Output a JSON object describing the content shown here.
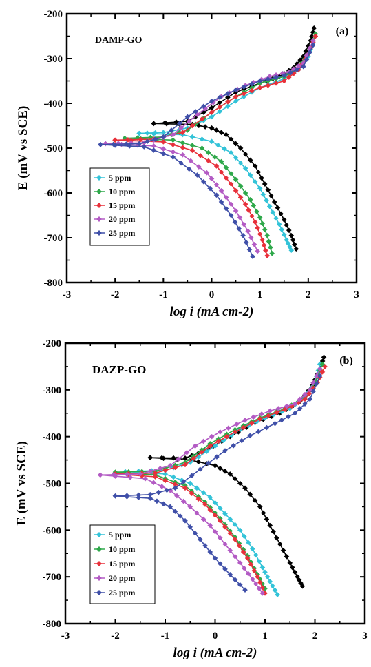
{
  "chart_data": [
    {
      "type": "line",
      "panel_tag": "(a)",
      "title": "DAMP-GO",
      "xlabel": "log i (mA cm-2)",
      "ylabel": "E (mV vs SCE)",
      "xlim": [
        -3,
        3
      ],
      "ylim": [
        -800,
        -200
      ],
      "x_ticks": [
        "-3",
        "-2",
        "-1",
        "0",
        "1",
        "2",
        "3"
      ],
      "y_ticks": [
        "-200",
        "-300",
        "-400",
        "-500",
        "-600",
        "-700",
        "-800"
      ],
      "legend_position": "lower-left",
      "series": [
        {
          "name": "",
          "color": "#000000",
          "anodic": [
            [
              -1.2,
              -445
            ],
            [
              -0.5,
              -440
            ],
            [
              0.0,
              -410
            ],
            [
              0.5,
              -375
            ],
            [
              1.0,
              -355
            ],
            [
              1.4,
              -340
            ],
            [
              1.7,
              -320
            ],
            [
              1.9,
              -295
            ],
            [
              2.05,
              -260
            ],
            [
              2.12,
              -232
            ]
          ],
          "cathodic": [
            [
              -1.2,
              -445
            ],
            [
              -0.4,
              -447
            ],
            [
              0.0,
              -455
            ],
            [
              0.3,
              -470
            ],
            [
              0.6,
              -500
            ],
            [
              0.9,
              -540
            ],
            [
              1.1,
              -580
            ],
            [
              1.3,
              -620
            ],
            [
              1.5,
              -660
            ],
            [
              1.65,
              -695
            ],
            [
              1.75,
              -725
            ]
          ]
        },
        {
          "name": "5 ppm",
          "color": "#33c3d8",
          "anodic": [
            [
              -1.5,
              -467
            ],
            [
              -1.0,
              -465
            ],
            [
              -0.5,
              -455
            ],
            [
              0.0,
              -430
            ],
            [
              0.5,
              -395
            ],
            [
              1.0,
              -365
            ],
            [
              1.5,
              -345
            ],
            [
              1.8,
              -325
            ],
            [
              2.0,
              -295
            ],
            [
              2.15,
              -250
            ]
          ],
          "cathodic": [
            [
              -1.5,
              -467
            ],
            [
              -0.6,
              -470
            ],
            [
              0.0,
              -485
            ],
            [
              0.4,
              -510
            ],
            [
              0.7,
              -545
            ],
            [
              1.0,
              -590
            ],
            [
              1.2,
              -630
            ],
            [
              1.4,
              -670
            ],
            [
              1.55,
              -705
            ],
            [
              1.65,
              -728
            ]
          ]
        },
        {
          "name": "10 ppm",
          "color": "#2ea84a",
          "anodic": [
            [
              -1.8,
              -478
            ],
            [
              -1.0,
              -475
            ],
            [
              -0.5,
              -460
            ],
            [
              0.0,
              -420
            ],
            [
              0.5,
              -385
            ],
            [
              1.0,
              -355
            ],
            [
              1.5,
              -340
            ],
            [
              1.8,
              -320
            ],
            [
              2.0,
              -290
            ],
            [
              2.15,
              -245
            ]
          ],
          "cathodic": [
            [
              -1.8,
              -478
            ],
            [
              -0.8,
              -482
            ],
            [
              -0.2,
              -500
            ],
            [
              0.2,
              -530
            ],
            [
              0.5,
              -570
            ],
            [
              0.8,
              -615
            ],
            [
              1.0,
              -655
            ],
            [
              1.15,
              -695
            ],
            [
              1.25,
              -735
            ]
          ]
        },
        {
          "name": "15 ppm",
          "color": "#e8303a",
          "anodic": [
            [
              -2.0,
              -482
            ],
            [
              -1.2,
              -480
            ],
            [
              -0.6,
              -465
            ],
            [
              0.0,
              -420
            ],
            [
              0.5,
              -385
            ],
            [
              1.0,
              -365
            ],
            [
              1.5,
              -350
            ],
            [
              1.8,
              -325
            ],
            [
              2.0,
              -290
            ],
            [
              2.15,
              -250
            ]
          ],
          "cathodic": [
            [
              -2.0,
              -482
            ],
            [
              -1.0,
              -486
            ],
            [
              -0.4,
              -505
            ],
            [
              0.1,
              -540
            ],
            [
              0.4,
              -580
            ],
            [
              0.7,
              -625
            ],
            [
              0.9,
              -665
            ],
            [
              1.05,
              -705
            ],
            [
              1.15,
              -740
            ]
          ]
        },
        {
          "name": "20 ppm",
          "color": "#b35bc4",
          "anodic": [
            [
              -2.2,
              -490
            ],
            [
              -1.4,
              -488
            ],
            [
              -0.8,
              -470
            ],
            [
              -0.3,
              -425
            ],
            [
              0.2,
              -385
            ],
            [
              0.7,
              -360
            ],
            [
              1.2,
              -340
            ],
            [
              1.6,
              -330
            ],
            [
              1.9,
              -310
            ],
            [
              2.1,
              -260
            ]
          ],
          "cathodic": [
            [
              -2.2,
              -490
            ],
            [
              -1.2,
              -495
            ],
            [
              -0.6,
              -515
            ],
            [
              -0.1,
              -555
            ],
            [
              0.2,
              -595
            ],
            [
              0.5,
              -640
            ],
            [
              0.75,
              -685
            ],
            [
              0.95,
              -730
            ]
          ]
        },
        {
          "name": "25 ppm",
          "color": "#3f4fa8",
          "anodic": [
            [
              -2.3,
              -492
            ],
            [
              -1.5,
              -490
            ],
            [
              -1.0,
              -475
            ],
            [
              -0.5,
              -430
            ],
            [
              0.0,
              -395
            ],
            [
              0.5,
              -370
            ],
            [
              1.0,
              -350
            ],
            [
              1.5,
              -338
            ],
            [
              1.9,
              -318
            ],
            [
              2.1,
              -270
            ]
          ],
          "cathodic": [
            [
              -2.3,
              -492
            ],
            [
              -1.4,
              -497
            ],
            [
              -0.8,
              -520
            ],
            [
              -0.3,
              -560
            ],
            [
              0.1,
              -605
            ],
            [
              0.4,
              -650
            ],
            [
              0.65,
              -695
            ],
            [
              0.85,
              -742
            ]
          ]
        }
      ]
    },
    {
      "type": "line",
      "panel_tag": "(b)",
      "title": "DAZP-GO",
      "xlabel": "log i (mA cm-2)",
      "ylabel": "E (mV vs SCE)",
      "xlim": [
        -3,
        3
      ],
      "ylim": [
        -800,
        -200
      ],
      "x_ticks": [
        "-3",
        "-2",
        "-1",
        "0",
        "1",
        "2",
        "3"
      ],
      "y_ticks": [
        "-200",
        "-300",
        "-400",
        "-500",
        "-600",
        "-700",
        "-800"
      ],
      "legend_position": "lower-left",
      "series": [
        {
          "name": "",
          "color": "#000000",
          "anodic": [
            [
              -1.3,
              -445
            ],
            [
              -0.6,
              -446
            ],
            [
              -0.2,
              -430
            ],
            [
              0.3,
              -400
            ],
            [
              0.8,
              -370
            ],
            [
              1.3,
              -350
            ],
            [
              1.7,
              -325
            ],
            [
              1.95,
              -290
            ],
            [
              2.1,
              -255
            ],
            [
              2.18,
              -230
            ]
          ],
          "cathodic": [
            [
              -1.3,
              -445
            ],
            [
              -0.5,
              -450
            ],
            [
              0.0,
              -462
            ],
            [
              0.3,
              -480
            ],
            [
              0.6,
              -510
            ],
            [
              0.9,
              -550
            ],
            [
              1.1,
              -590
            ],
            [
              1.3,
              -630
            ],
            [
              1.5,
              -670
            ],
            [
              1.65,
              -700
            ],
            [
              1.75,
              -720
            ]
          ]
        },
        {
          "name": "5 ppm",
          "color": "#33c3d8",
          "anodic": [
            [
              -1.8,
              -475
            ],
            [
              -1.0,
              -472
            ],
            [
              -0.5,
              -455
            ],
            [
              0.0,
              -420
            ],
            [
              0.5,
              -385
            ],
            [
              1.0,
              -360
            ],
            [
              1.5,
              -340
            ],
            [
              1.8,
              -315
            ],
            [
              2.0,
              -285
            ],
            [
              2.1,
              -245
            ]
          ],
          "cathodic": [
            [
              -1.8,
              -475
            ],
            [
              -1.0,
              -480
            ],
            [
              -0.5,
              -500
            ],
            [
              -0.1,
              -530
            ],
            [
              0.2,
              -565
            ],
            [
              0.5,
              -600
            ],
            [
              0.75,
              -640
            ],
            [
              0.95,
              -680
            ],
            [
              1.1,
              -710
            ],
            [
              1.25,
              -738
            ]
          ]
        },
        {
          "name": "10 ppm",
          "color": "#2ea84a",
          "anodic": [
            [
              -2.0,
              -476
            ],
            [
              -1.2,
              -474
            ],
            [
              -0.6,
              -455
            ],
            [
              -0.1,
              -415
            ],
            [
              0.4,
              -385
            ],
            [
              0.9,
              -360
            ],
            [
              1.4,
              -340
            ],
            [
              1.8,
              -318
            ],
            [
              2.0,
              -285
            ],
            [
              2.15,
              -245
            ]
          ],
          "cathodic": [
            [
              -2.0,
              -476
            ],
            [
              -1.2,
              -482
            ],
            [
              -0.6,
              -505
            ],
            [
              -0.2,
              -540
            ],
            [
              0.1,
              -575
            ],
            [
              0.4,
              -615
            ],
            [
              0.65,
              -655
            ],
            [
              0.85,
              -695
            ],
            [
              1.0,
              -725
            ]
          ]
        },
        {
          "name": "15 ppm",
          "color": "#e8303a",
          "anodic": [
            [
              -2.0,
              -480
            ],
            [
              -1.2,
              -478
            ],
            [
              -0.6,
              -460
            ],
            [
              -0.1,
              -420
            ],
            [
              0.4,
              -390
            ],
            [
              0.9,
              -362
            ],
            [
              1.4,
              -342
            ],
            [
              1.8,
              -320
            ],
            [
              2.05,
              -285
            ],
            [
              2.2,
              -250
            ]
          ],
          "cathodic": [
            [
              -2.0,
              -480
            ],
            [
              -1.2,
              -486
            ],
            [
              -0.6,
              -510
            ],
            [
              -0.2,
              -545
            ],
            [
              0.1,
              -580
            ],
            [
              0.4,
              -620
            ],
            [
              0.65,
              -660
            ],
            [
              0.85,
              -700
            ],
            [
              1.0,
              -735
            ]
          ]
        },
        {
          "name": "20 ppm",
          "color": "#b35bc4",
          "anodic": [
            [
              -2.3,
              -482
            ],
            [
              -1.5,
              -480
            ],
            [
              -0.9,
              -462
            ],
            [
              -0.4,
              -420
            ],
            [
              0.1,
              -390
            ],
            [
              0.6,
              -365
            ],
            [
              1.1,
              -345
            ],
            [
              1.6,
              -330
            ],
            [
              1.9,
              -300
            ],
            [
              2.1,
              -255
            ]
          ],
          "cathodic": [
            [
              -2.3,
              -482
            ],
            [
              -1.4,
              -490
            ],
            [
              -0.9,
              -515
            ],
            [
              -0.5,
              -550
            ],
            [
              -0.1,
              -590
            ],
            [
              0.2,
              -630
            ],
            [
              0.5,
              -670
            ],
            [
              0.75,
              -705
            ],
            [
              0.95,
              -735
            ]
          ]
        },
        {
          "name": "25 ppm",
          "color": "#3f4fa8",
          "anodic": [
            [
              -2.0,
              -527
            ],
            [
              -1.3,
              -524
            ],
            [
              -0.8,
              -510
            ],
            [
              -0.3,
              -470
            ],
            [
              0.2,
              -430
            ],
            [
              0.7,
              -398
            ],
            [
              1.2,
              -372
            ],
            [
              1.6,
              -350
            ],
            [
              1.9,
              -320
            ],
            [
              2.1,
              -270
            ]
          ],
          "cathodic": [
            [
              -2.0,
              -527
            ],
            [
              -1.3,
              -532
            ],
            [
              -0.9,
              -550
            ],
            [
              -0.6,
              -580
            ],
            [
              -0.3,
              -620
            ],
            [
              0.0,
              -660
            ],
            [
              0.3,
              -695
            ],
            [
              0.6,
              -728
            ]
          ]
        }
      ]
    }
  ]
}
